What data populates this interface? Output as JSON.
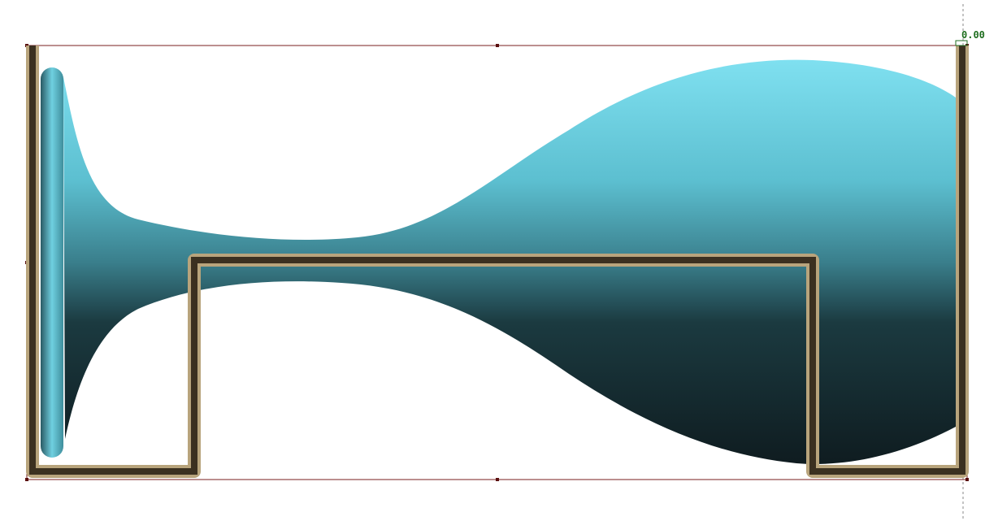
{
  "readout": "0.00"
}
